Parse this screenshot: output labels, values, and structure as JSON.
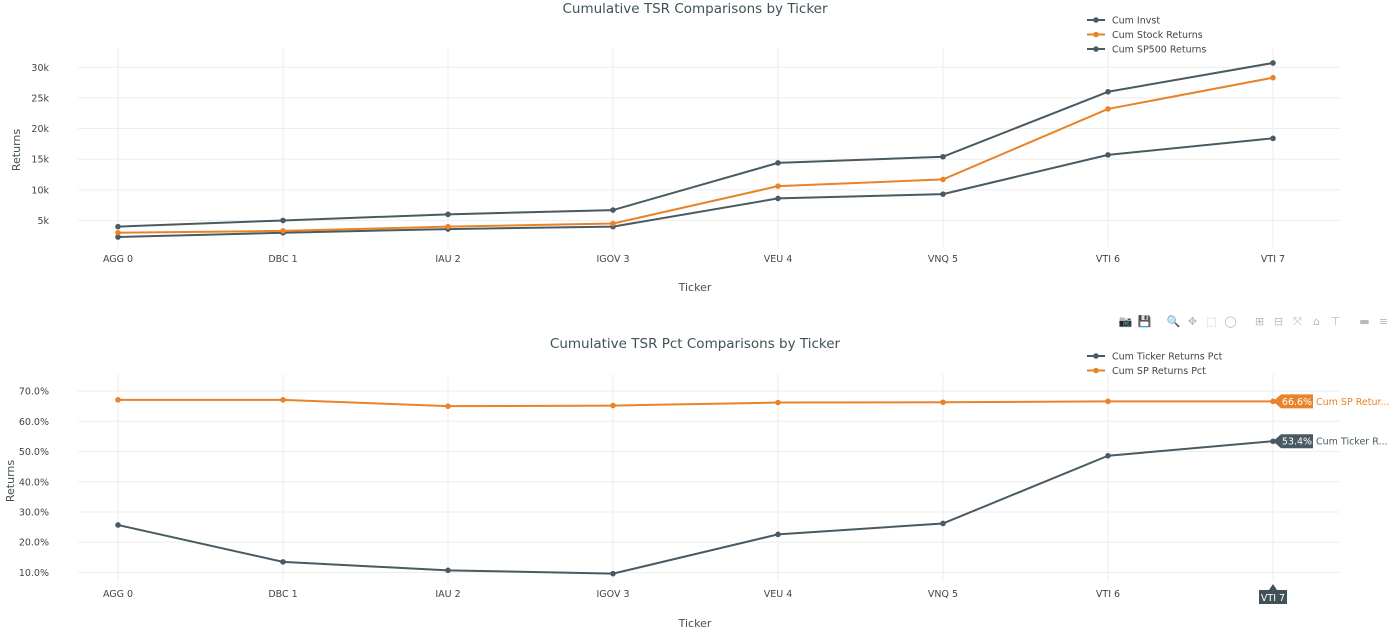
{
  "modebar": {
    "icons": [
      "camera-icon",
      "save-icon",
      "zoom-icon",
      "pan-icon",
      "box-select-icon",
      "lasso-icon",
      "zoom-in-icon",
      "zoom-out-icon",
      "autoscale-icon",
      "reset-axes-icon",
      "spike-lines-icon",
      "hover-closest-icon",
      "hover-compare-icon",
      "plotly-logo-icon"
    ],
    "glyphs": [
      "📷",
      "💾",
      "🔍",
      "✥",
      "⬚",
      "◯",
      "⊞",
      "⊟",
      "⤧",
      "⌂",
      "⊤",
      "▬",
      "≡",
      "▐"
    ]
  },
  "chart_data": [
    {
      "type": "line",
      "title": "Cumulative TSR Comparisons by Ticker",
      "xlabel": "Ticker",
      "ylabel": "Returns",
      "categories": [
        "AGG 0",
        "DBC 1",
        "IAU 2",
        "IGOV 3",
        "VEU 4",
        "VNQ 5",
        "VTI 6",
        "VTI 7"
      ],
      "ylim": [
        1000,
        32000
      ],
      "yticks": [
        5000,
        10000,
        15000,
        20000,
        25000,
        30000
      ],
      "ytick_labels": [
        "5k",
        "10k",
        "15k",
        "20k",
        "25k",
        "30k"
      ],
      "grid": true,
      "legend_position": "top-right",
      "series": [
        {
          "name": "Cum Invst",
          "color": "#4a5a63",
          "values": [
            2300,
            3000,
            3600,
            4000,
            8600,
            9300,
            15700,
            18400
          ]
        },
        {
          "name": "Cum Stock Returns",
          "color": "#e8832a",
          "values": [
            3000,
            3300,
            4000,
            4500,
            10600,
            11700,
            23200,
            28300
          ]
        },
        {
          "name": "Cum SP500 Returns",
          "color": "#4a5a63",
          "values": [
            4000,
            5000,
            6000,
            6700,
            14400,
            15400,
            26000,
            30700
          ]
        }
      ]
    },
    {
      "type": "line",
      "title": "Cumulative TSR Pct Comparisons by Ticker",
      "xlabel": "Ticker",
      "ylabel": "Returns",
      "categories": [
        "AGG 0",
        "DBC 1",
        "IAU 2",
        "IGOV 3",
        "VEU 4",
        "VNQ 5",
        "VTI 6",
        "VTI 7"
      ],
      "ylim": [
        7.5,
        73
      ],
      "yticks": [
        10,
        20,
        30,
        40,
        50,
        60,
        70
      ],
      "ytick_labels": [
        "10.0%",
        "20.0%",
        "30.0%",
        "40.0%",
        "50.0%",
        "60.0%",
        "70.0%"
      ],
      "grid": true,
      "legend_position": "top-right",
      "series": [
        {
          "name": "Cum Ticker Returns Pct",
          "color": "#4a5a63",
          "values": [
            25.7,
            13.5,
            10.7,
            9.6,
            22.6,
            26.2,
            48.6,
            53.4
          ]
        },
        {
          "name": "Cum SP Returns Pct",
          "color": "#e8832a",
          "values": [
            67.1,
            67.1,
            65.0,
            65.2,
            66.2,
            66.3,
            66.6,
            66.6
          ]
        }
      ],
      "hover": {
        "category_label": "VTI 7",
        "labels": [
          {
            "value_label": "66.6%",
            "name_label": "Cum SP Retur...",
            "color": "#e8832a"
          },
          {
            "value_label": "53.4%",
            "name_label": "Cum Ticker R...",
            "color": "#4a5a63"
          }
        ]
      }
    }
  ]
}
